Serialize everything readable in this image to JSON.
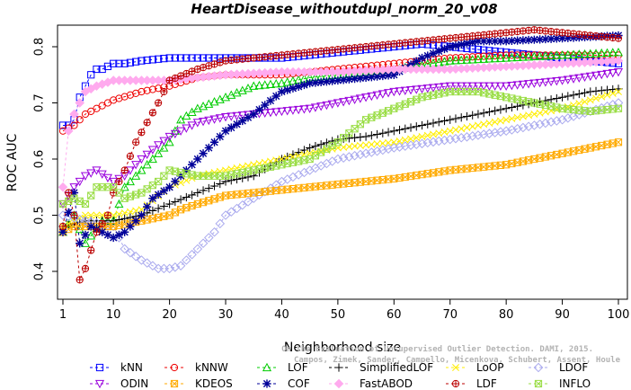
{
  "chart_data": {
    "type": "line",
    "title": "HeartDisease_withoutdupl_norm_20_v08",
    "xlabel": "Neighborhood size",
    "ylabel": "ROC AUC",
    "xlim": [
      1,
      100
    ],
    "ylim": [
      0.36,
      0.85
    ],
    "xticks": [
      1,
      10,
      20,
      30,
      40,
      50,
      60,
      70,
      80,
      90,
      100
    ],
    "yticks": [
      0.4,
      0.5,
      0.6,
      0.7,
      0.8
    ],
    "grid": false,
    "legend_position": "bottom",
    "watermark": [
      "Campos, Zimek, Sander, Campello, Micenkova, Schubert, Assent, Houle",
      "On the Evaluation of Unsupervised Outlier Detection. DAMI, 2015."
    ],
    "series": [
      {
        "name": "kNN",
        "color": "#0000ff",
        "marker": "square",
        "points": [
          [
            1,
            0.66
          ],
          [
            2,
            0.66
          ],
          [
            3,
            0.67
          ],
          [
            4,
            0.71
          ],
          [
            5,
            0.73
          ],
          [
            6,
            0.75
          ],
          [
            7,
            0.76
          ],
          [
            8,
            0.76
          ],
          [
            10,
            0.77
          ],
          [
            12,
            0.77
          ],
          [
            15,
            0.775
          ],
          [
            20,
            0.78
          ],
          [
            25,
            0.78
          ],
          [
            30,
            0.78
          ],
          [
            40,
            0.78
          ],
          [
            50,
            0.79
          ],
          [
            60,
            0.8
          ],
          [
            65,
            0.805
          ],
          [
            70,
            0.8
          ],
          [
            80,
            0.79
          ],
          [
            90,
            0.78
          ],
          [
            100,
            0.77
          ]
        ]
      },
      {
        "name": "kNNW",
        "color": "#ee0000",
        "marker": "circle",
        "points": [
          [
            1,
            0.65
          ],
          [
            2,
            0.655
          ],
          [
            3,
            0.66
          ],
          [
            5,
            0.68
          ],
          [
            8,
            0.695
          ],
          [
            10,
            0.705
          ],
          [
            15,
            0.72
          ],
          [
            20,
            0.73
          ],
          [
            25,
            0.745
          ],
          [
            30,
            0.75
          ],
          [
            40,
            0.75
          ],
          [
            50,
            0.76
          ],
          [
            60,
            0.77
          ],
          [
            70,
            0.78
          ],
          [
            80,
            0.785
          ],
          [
            90,
            0.785
          ],
          [
            100,
            0.785
          ]
        ]
      },
      {
        "name": "LOF",
        "color": "#00cc00",
        "marker": "triangle",
        "points": [
          [
            1,
            0.47
          ],
          [
            3,
            0.5
          ],
          [
            5,
            0.45
          ],
          [
            8,
            0.49
          ],
          [
            10,
            0.49
          ],
          [
            12,
            0.55
          ],
          [
            15,
            0.58
          ],
          [
            17,
            0.6
          ],
          [
            20,
            0.63
          ],
          [
            22,
            0.67
          ],
          [
            25,
            0.69
          ],
          [
            30,
            0.71
          ],
          [
            35,
            0.73
          ],
          [
            40,
            0.735
          ],
          [
            45,
            0.745
          ],
          [
            50,
            0.75
          ],
          [
            60,
            0.76
          ],
          [
            70,
            0.775
          ],
          [
            80,
            0.78
          ],
          [
            90,
            0.785
          ],
          [
            100,
            0.79
          ]
        ]
      },
      {
        "name": "SimplifiedLOF",
        "color": "#000000",
        "marker": "plus",
        "points": [
          [
            1,
            0.48
          ],
          [
            5,
            0.49
          ],
          [
            10,
            0.49
          ],
          [
            15,
            0.5
          ],
          [
            20,
            0.52
          ],
          [
            25,
            0.54
          ],
          [
            30,
            0.56
          ],
          [
            35,
            0.57
          ],
          [
            40,
            0.6
          ],
          [
            45,
            0.62
          ],
          [
            50,
            0.635
          ],
          [
            55,
            0.64
          ],
          [
            60,
            0.65
          ],
          [
            65,
            0.66
          ],
          [
            70,
            0.67
          ],
          [
            75,
            0.68
          ],
          [
            80,
            0.69
          ],
          [
            85,
            0.7
          ],
          [
            90,
            0.71
          ],
          [
            95,
            0.72
          ],
          [
            100,
            0.725
          ]
        ]
      },
      {
        "name": "LoOP",
        "color": "#ffee00",
        "marker": "x",
        "points": [
          [
            1,
            0.48
          ],
          [
            5,
            0.5
          ],
          [
            10,
            0.5
          ],
          [
            15,
            0.51
          ],
          [
            20,
            0.55
          ],
          [
            25,
            0.57
          ],
          [
            30,
            0.58
          ],
          [
            35,
            0.59
          ],
          [
            40,
            0.6
          ],
          [
            45,
            0.61
          ],
          [
            50,
            0.62
          ],
          [
            60,
            0.63
          ],
          [
            70,
            0.65
          ],
          [
            80,
            0.67
          ],
          [
            90,
            0.69
          ],
          [
            100,
            0.72
          ]
        ]
      },
      {
        "name": "LDOF",
        "color": "#aaaaee",
        "marker": "diamond",
        "points": [
          [
            1,
            0.5
          ],
          [
            5,
            0.49
          ],
          [
            10,
            0.48
          ],
          [
            12,
            0.44
          ],
          [
            15,
            0.42
          ],
          [
            18,
            0.405
          ],
          [
            20,
            0.405
          ],
          [
            22,
            0.41
          ],
          [
            25,
            0.44
          ],
          [
            28,
            0.47
          ],
          [
            30,
            0.5
          ],
          [
            35,
            0.53
          ],
          [
            40,
            0.56
          ],
          [
            45,
            0.58
          ],
          [
            50,
            0.6
          ],
          [
            55,
            0.61
          ],
          [
            60,
            0.62
          ],
          [
            70,
            0.635
          ],
          [
            80,
            0.65
          ],
          [
            90,
            0.67
          ],
          [
            100,
            0.7
          ]
        ]
      },
      {
        "name": "ODIN",
        "color": "#9900dd",
        "marker": "triangle-down",
        "points": [
          [
            1,
            0.52
          ],
          [
            3,
            0.55
          ],
          [
            5,
            0.57
          ],
          [
            7,
            0.58
          ],
          [
            10,
            0.56
          ],
          [
            12,
            0.57
          ],
          [
            15,
            0.6
          ],
          [
            18,
            0.625
          ],
          [
            20,
            0.64
          ],
          [
            25,
            0.665
          ],
          [
            30,
            0.675
          ],
          [
            35,
            0.68
          ],
          [
            40,
            0.685
          ],
          [
            45,
            0.69
          ],
          [
            50,
            0.7
          ],
          [
            55,
            0.71
          ],
          [
            60,
            0.72
          ],
          [
            70,
            0.73
          ],
          [
            80,
            0.73
          ],
          [
            90,
            0.74
          ],
          [
            100,
            0.755
          ]
        ]
      },
      {
        "name": "KDEOS",
        "color": "#ffaa00",
        "marker": "square-x",
        "points": [
          [
            1,
            0.47
          ],
          [
            3,
            0.48
          ],
          [
            5,
            0.48
          ],
          [
            10,
            0.48
          ],
          [
            15,
            0.49
          ],
          [
            20,
            0.5
          ],
          [
            22,
            0.51
          ],
          [
            25,
            0.52
          ],
          [
            30,
            0.535
          ],
          [
            40,
            0.545
          ],
          [
            50,
            0.555
          ],
          [
            60,
            0.565
          ],
          [
            70,
            0.58
          ],
          [
            80,
            0.59
          ],
          [
            85,
            0.6
          ],
          [
            90,
            0.61
          ],
          [
            95,
            0.62
          ],
          [
            100,
            0.63
          ]
        ]
      },
      {
        "name": "COF",
        "color": "#000099",
        "marker": "asterisk",
        "points": [
          [
            1,
            0.47
          ],
          [
            3,
            0.54
          ],
          [
            4,
            0.45
          ],
          [
            6,
            0.48
          ],
          [
            8,
            0.47
          ],
          [
            10,
            0.46
          ],
          [
            12,
            0.47
          ],
          [
            15,
            0.5
          ],
          [
            17,
            0.53
          ],
          [
            20,
            0.55
          ],
          [
            25,
            0.6
          ],
          [
            30,
            0.65
          ],
          [
            35,
            0.68
          ],
          [
            40,
            0.72
          ],
          [
            45,
            0.735
          ],
          [
            50,
            0.74
          ],
          [
            60,
            0.75
          ],
          [
            65,
            0.78
          ],
          [
            70,
            0.8
          ],
          [
            75,
            0.81
          ],
          [
            80,
            0.81
          ],
          [
            90,
            0.815
          ],
          [
            100,
            0.82
          ]
        ]
      },
      {
        "name": "FastABOD",
        "color": "#ffaaee",
        "marker": "diamond-filled",
        "points": [
          [
            1,
            0.55
          ],
          [
            2,
            0.65
          ],
          [
            3,
            0.68
          ],
          [
            4,
            0.7
          ],
          [
            5,
            0.72
          ],
          [
            7,
            0.73
          ],
          [
            10,
            0.74
          ],
          [
            15,
            0.74
          ],
          [
            20,
            0.74
          ],
          [
            25,
            0.745
          ],
          [
            30,
            0.75
          ],
          [
            40,
            0.755
          ],
          [
            50,
            0.755
          ],
          [
            60,
            0.76
          ],
          [
            70,
            0.76
          ],
          [
            80,
            0.765
          ],
          [
            90,
            0.77
          ],
          [
            100,
            0.775
          ]
        ]
      },
      {
        "name": "LDF",
        "color": "#bb0000",
        "marker": "circle-plus",
        "points": [
          [
            1,
            0.48
          ],
          [
            2,
            0.54
          ],
          [
            3,
            0.5
          ],
          [
            4,
            0.385
          ],
          [
            5,
            0.405
          ],
          [
            7,
            0.47
          ],
          [
            9,
            0.5
          ],
          [
            10,
            0.54
          ],
          [
            12,
            0.58
          ],
          [
            14,
            0.63
          ],
          [
            16,
            0.665
          ],
          [
            18,
            0.7
          ],
          [
            20,
            0.74
          ],
          [
            25,
            0.76
          ],
          [
            30,
            0.775
          ],
          [
            40,
            0.785
          ],
          [
            50,
            0.795
          ],
          [
            60,
            0.805
          ],
          [
            70,
            0.815
          ],
          [
            80,
            0.825
          ],
          [
            85,
            0.83
          ],
          [
            90,
            0.825
          ],
          [
            100,
            0.815
          ]
        ]
      },
      {
        "name": "INFLO",
        "color": "#99dd44",
        "marker": "hourglass",
        "points": [
          [
            1,
            0.52
          ],
          [
            3,
            0.53
          ],
          [
            5,
            0.52
          ],
          [
            7,
            0.55
          ],
          [
            10,
            0.55
          ],
          [
            12,
            0.53
          ],
          [
            15,
            0.54
          ],
          [
            18,
            0.56
          ],
          [
            20,
            0.58
          ],
          [
            25,
            0.57
          ],
          [
            30,
            0.57
          ],
          [
            35,
            0.58
          ],
          [
            40,
            0.59
          ],
          [
            45,
            0.6
          ],
          [
            50,
            0.63
          ],
          [
            55,
            0.67
          ],
          [
            60,
            0.69
          ],
          [
            65,
            0.71
          ],
          [
            70,
            0.72
          ],
          [
            75,
            0.72
          ],
          [
            80,
            0.71
          ],
          [
            85,
            0.7
          ],
          [
            90,
            0.69
          ],
          [
            95,
            0.685
          ],
          [
            100,
            0.69
          ]
        ]
      }
    ]
  }
}
